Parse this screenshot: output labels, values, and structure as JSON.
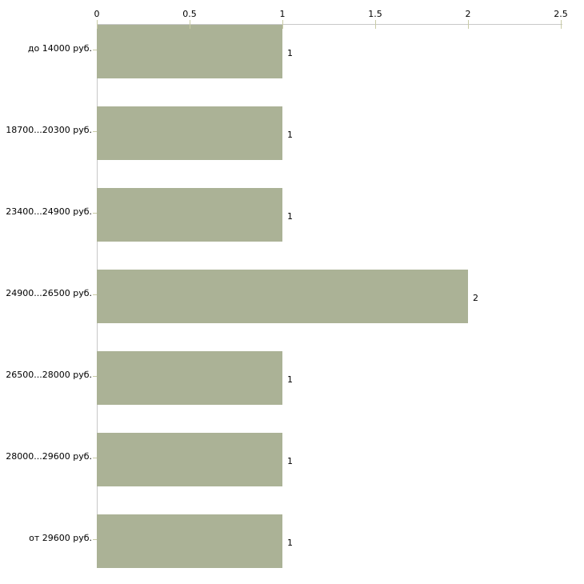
{
  "chart_data": {
    "type": "bar",
    "orientation": "horizontal",
    "title": "",
    "xlabel": "",
    "ylabel": "",
    "categories": [
      "до 14000 руб.",
      "18700...20300 руб.",
      "23400...24900 руб.",
      "24900...26500 руб.",
      "26500...28000 руб.",
      "28000...29600 руб.",
      "от 29600 руб."
    ],
    "values": [
      1,
      1,
      1,
      2,
      1,
      1,
      1
    ],
    "value_labels": [
      "1",
      "1",
      "1",
      "2",
      "1",
      "1",
      "1"
    ],
    "x_ticks": [
      0,
      0.5,
      1,
      1.5,
      2,
      2.5
    ],
    "x_tick_labels": [
      "0",
      "0.5",
      "1",
      "1.5",
      "2",
      "2.5"
    ],
    "xlim": [
      0,
      2.5
    ],
    "axis_position": "top",
    "grid": false,
    "legend": false,
    "colors": {
      "bar": "#abb296",
      "axis_line": "#c8c8c8",
      "tick_mark": "#c9cba6",
      "text": "#000000",
      "background": "#ffffff"
    }
  }
}
